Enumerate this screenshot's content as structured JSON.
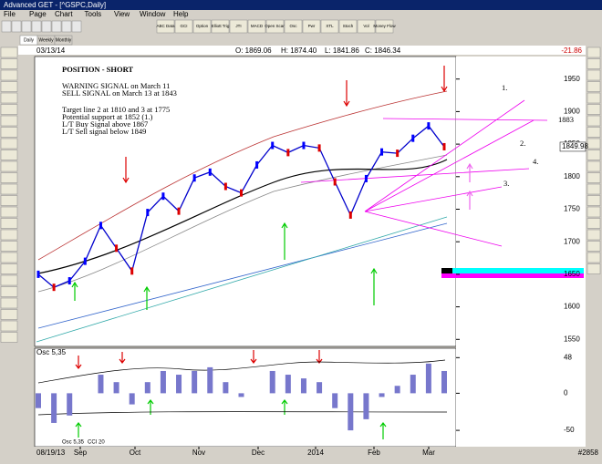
{
  "window": {
    "title": "Advanced GET - [^GSPC,Daily]"
  },
  "menu": [
    "File",
    "Page",
    "Chart",
    "Tools",
    "View",
    "Window",
    "Help"
  ],
  "toolbar": [
    "ABC Data",
    "GCI",
    "Option",
    "Elliott Trig",
    "JTI",
    "MACD",
    "Open Scan",
    "Osc",
    "Pwr",
    "XTL",
    "Stoch",
    "Vol",
    "Money Flow"
  ],
  "tabs": [
    "Daily",
    "Weekly",
    "Monthly"
  ],
  "header": {
    "date": "03/13/14",
    "open": "O: 1869.06",
    "high": "H: 1874.40",
    "low": "L: 1841.86",
    "close": "C: 1846.34",
    "change": "-21.86"
  },
  "price_chart": {
    "notes": [
      "POSITION - SHORT",
      "WARNING SIGNAL on March 11",
      "SELL SIGNAL on March 13 at 1843",
      "Target line 2 at 1810 and 3 at 1775",
      "Potential support at 1852 (1.)",
      "L/T Buy Signal above 1867",
      "L/T Sell signal below 1849"
    ],
    "wave_labels": [
      "1.",
      "2.",
      "3.",
      "4."
    ],
    "level_label": "1883",
    "last_price_label": "1849.98",
    "close": [
      1650,
      1630,
      1640,
      1670,
      1725,
      1690,
      1655,
      1745,
      1770,
      1747,
      1798,
      1807,
      1785,
      1775,
      1818,
      1848,
      1837,
      1848,
      1844,
      1792,
      1741,
      1797,
      1838,
      1836,
      1859,
      1878,
      1846
    ],
    "ylim": [
      1542,
      1979
    ],
    "yticks": [
      1550,
      1600,
      1650,
      1700,
      1750,
      1800,
      1850,
      1900,
      1950
    ]
  },
  "oscillator": {
    "label": "Osc 5,35",
    "values": [
      -20,
      -40,
      -30,
      0,
      25,
      15,
      -15,
      15,
      30,
      25,
      30,
      35,
      15,
      -5,
      0,
      30,
      25,
      20,
      15,
      -20,
      -50,
      -35,
      -5,
      10,
      25,
      40,
      30
    ],
    "ylim": [
      -72,
      57
    ],
    "yticks": [
      48,
      0,
      -50
    ]
  },
  "date_axis": {
    "start": "08/19/13",
    "labels": [
      "Sep",
      "Oct",
      "Nov",
      "Dec",
      "2014",
      "Feb",
      "Mar"
    ]
  },
  "bottom_tabs": [
    "Osc 5,35",
    "CCI 20"
  ],
  "status": "#2858"
}
